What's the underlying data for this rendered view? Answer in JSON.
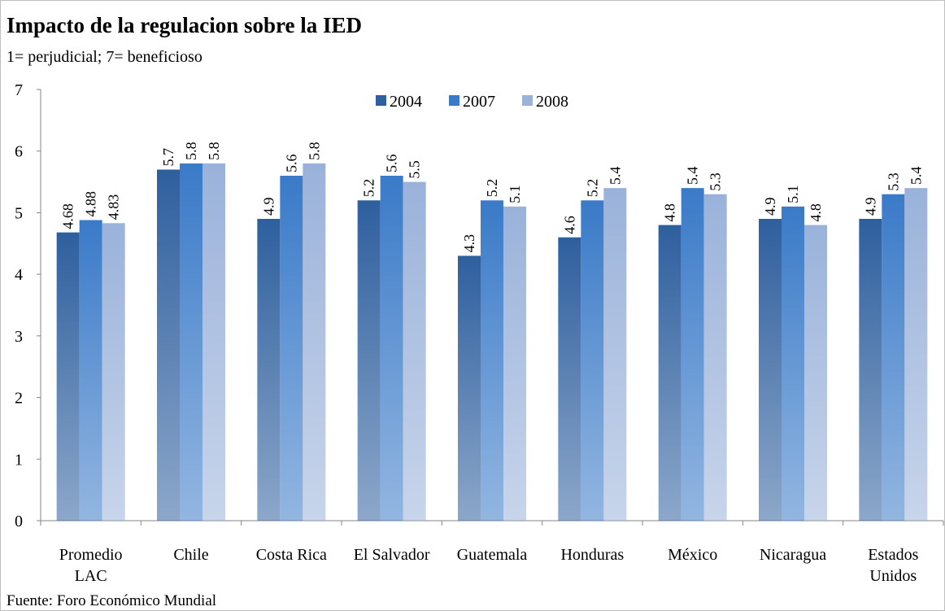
{
  "chart_data": {
    "type": "bar",
    "title": "Impacto de la regulacion sobre la IED",
    "subtitle": "1= perjudicial; 7= beneficioso",
    "source": "Fuente: Foro Económico Mundial",
    "categories": [
      "Promedio\nLAC",
      "Chile",
      "Costa Rica",
      "El Salvador",
      "Guatemala",
      "Honduras",
      "México",
      "Nicaragua",
      "Estados\nUnidos"
    ],
    "series": [
      {
        "name": "2004",
        "color": "#2e5f9e",
        "values": [
          4.68,
          5.7,
          4.9,
          5.2,
          4.3,
          4.6,
          4.8,
          4.9,
          4.9
        ]
      },
      {
        "name": "2007",
        "color": "#3a7ac8",
        "values": [
          4.88,
          5.8,
          5.6,
          5.6,
          5.2,
          5.2,
          5.4,
          5.1,
          5.3
        ]
      },
      {
        "name": "2008",
        "color": "#9ab2da",
        "values": [
          4.83,
          5.8,
          5.8,
          5.5,
          5.1,
          5.4,
          5.3,
          4.8,
          5.4
        ]
      }
    ],
    "ylim": [
      0,
      7
    ],
    "yticks": [
      0,
      1,
      2,
      3,
      4,
      5,
      6,
      7
    ],
    "grid": false,
    "legend": "top"
  }
}
